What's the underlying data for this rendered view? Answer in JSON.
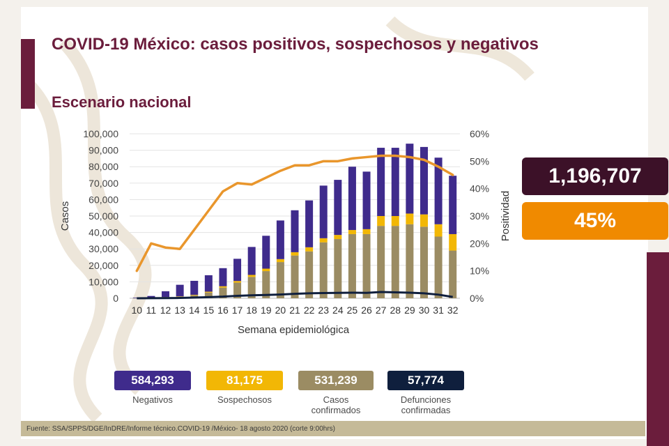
{
  "title": "COVID-19 México: casos positivos, sospechosos y negativos",
  "subtitle": "Escenario nacional",
  "total_box": "1,196,707",
  "positivity_box": "45%",
  "colors": {
    "maroon": "#6b1d3c",
    "negativos": "#3f2b8c",
    "sospechosos": "#f2b705",
    "confirmados": "#9b8c63",
    "defunciones": "#0f1f3d",
    "positividad": "#e9962c",
    "total_box": "#3c1128",
    "positivity_box": "#f08a00"
  },
  "legend": [
    {
      "value": "584,293",
      "label": "Negativos"
    },
    {
      "value": "81,175",
      "label": "Sospechosos"
    },
    {
      "value": "531,239",
      "label": "Casos confirmados"
    },
    {
      "value": "57,774",
      "label": "Defunciones confirmadas"
    }
  ],
  "footer": "Fuente: SSA/SPPS/DGE/InDRE/Informe técnico.COVID-19 /México- 18 agosto 2020 (corte 9:00hrs)",
  "chart_data": {
    "type": "bar",
    "stacked": true,
    "xlabel": "Semana epidemiológica",
    "ylabel": "Casos",
    "y2label": "Positividad",
    "ylim": [
      0,
      100000
    ],
    "y2lim": [
      0,
      60
    ],
    "yticks": [
      "0",
      "10,000",
      "20,000",
      "30,000",
      "40,000",
      "50,000",
      "60,000",
      "70,000",
      "80,000",
      "90,000",
      "100,000"
    ],
    "y2ticks": [
      "0%",
      "10%",
      "20%",
      "30%",
      "40%",
      "50%",
      "60%"
    ],
    "categories": [
      "10",
      "11",
      "12",
      "13",
      "14",
      "15",
      "16",
      "17",
      "18",
      "19",
      "20",
      "21",
      "22",
      "23",
      "24",
      "25",
      "26",
      "27",
      "28",
      "29",
      "30",
      "31",
      "32"
    ],
    "series": [
      {
        "name": "Casos confirmados",
        "values": [
          50,
          300,
          600,
          1000,
          1800,
          3500,
          6500,
          9500,
          13000,
          16500,
          22000,
          26000,
          28500,
          34000,
          36000,
          39000,
          39000,
          44000,
          44000,
          45000,
          43500,
          37500,
          29000
        ]
      },
      {
        "name": "Sospechosos",
        "values": [
          20,
          100,
          150,
          200,
          300,
          500,
          800,
          1000,
          1200,
          1500,
          1800,
          2000,
          2500,
          2500,
          2500,
          2500,
          3000,
          6000,
          6000,
          6500,
          7500,
          7500,
          10000
        ]
      },
      {
        "name": "Negativos",
        "values": [
          300,
          1000,
          3500,
          7000,
          8500,
          10000,
          11000,
          13500,
          17000,
          20000,
          23500,
          25500,
          28500,
          32000,
          33500,
          38500,
          35000,
          41500,
          41500,
          42500,
          41000,
          40500,
          35500
        ]
      },
      {
        "name": "Defunciones",
        "values": [
          0,
          50,
          100,
          200,
          400,
          700,
          1000,
          1500,
          1800,
          2000,
          2300,
          2700,
          3000,
          3200,
          3300,
          3400,
          3300,
          3800,
          3600,
          3400,
          3000,
          2200,
          800
        ]
      },
      {
        "name": "Positividad",
        "values": [
          10,
          20,
          18.5,
          18,
          25,
          32,
          39,
          42,
          41.5,
          44,
          46.5,
          48.5,
          48.5,
          50,
          50,
          51,
          51.5,
          52,
          52,
          51.5,
          50.5,
          48,
          45
        ]
      }
    ]
  }
}
